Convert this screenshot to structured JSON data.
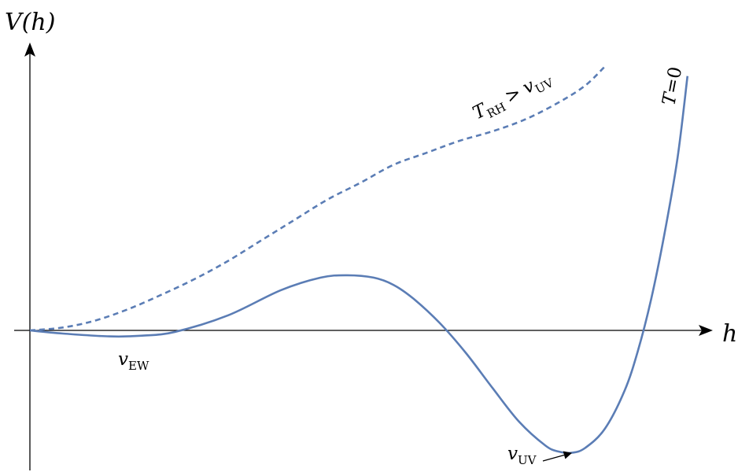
{
  "chart_data": {
    "type": "line",
    "title": "",
    "ylabel": "V(h)",
    "xlabel": "h",
    "xlim": [
      0,
      1
    ],
    "ylim": [
      -0.52,
      1.12
    ],
    "grid": false,
    "ticks": "none",
    "series": [
      {
        "name": "T=0",
        "style": "solid",
        "color": "#5b7db5",
        "x": [
          0.0,
          0.05,
          0.12,
          0.17,
          0.22,
          0.3,
          0.38,
          0.44,
          0.48,
          0.52,
          0.55,
          0.58,
          0.62,
          0.66,
          0.7,
          0.74,
          0.78,
          0.8,
          0.82,
          0.84,
          0.87,
          0.9,
          0.92,
          0.94,
          0.96,
          0.98,
          0.995
        ],
        "y": [
          0.0,
          -0.013,
          -0.025,
          -0.022,
          -0.006,
          0.063,
          0.168,
          0.22,
          0.23,
          0.22,
          0.19,
          0.133,
          0.031,
          -0.095,
          -0.24,
          -0.38,
          -0.48,
          -0.505,
          -0.51,
          -0.49,
          -0.41,
          -0.25,
          -0.085,
          0.13,
          0.4,
          0.72,
          1.06
        ]
      },
      {
        "name": "T_RH > v_UV",
        "style": "dashed",
        "color": "#5b7db5",
        "x": [
          0.0,
          0.05,
          0.1,
          0.15,
          0.2,
          0.25,
          0.3,
          0.35,
          0.4,
          0.45,
          0.5,
          0.55,
          0.6,
          0.65,
          0.7,
          0.75,
          0.8,
          0.84,
          0.87
        ],
        "y": [
          0.0,
          0.012,
          0.042,
          0.09,
          0.15,
          0.215,
          0.29,
          0.375,
          0.46,
          0.545,
          0.615,
          0.69,
          0.74,
          0.79,
          0.83,
          0.88,
          0.95,
          1.02,
          1.1
        ]
      }
    ],
    "annotations": {
      "t0_main": "T",
      "t0_rest": "=0",
      "trh_main": "T",
      "trh_sub": "RH",
      "trh_rel": ">",
      "trh_v": "v",
      "trh_vsub": "UV",
      "vew_main": "v",
      "vew_sub": "EW",
      "vuv_main": "v",
      "vuv_sub": "UV"
    }
  }
}
